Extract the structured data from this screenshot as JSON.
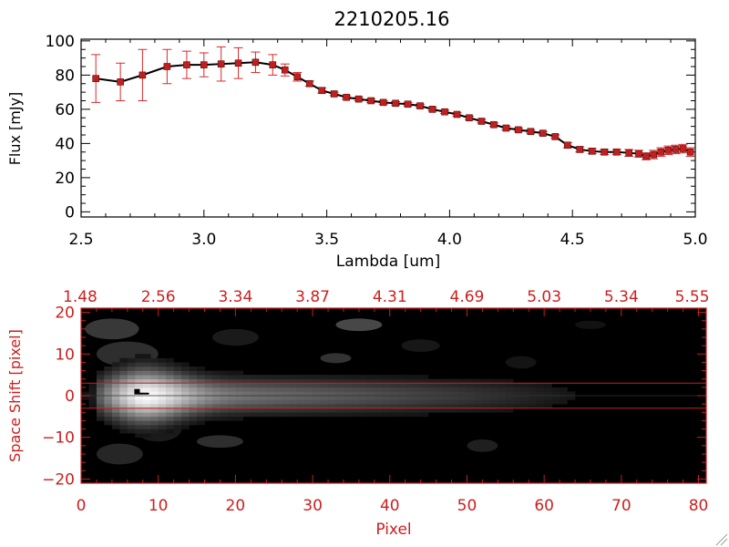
{
  "colors": {
    "axis_top": "#000000",
    "axis_bottom": "#cc1f1f",
    "marker": "#c0201f",
    "errorbar": "#d62a2a",
    "line": "#000000",
    "band": "#cc1f1f"
  },
  "chart_data": [
    {
      "type": "line",
      "title": "2210205.16",
      "xlabel": "Lambda [um]",
      "ylabel": "Flux [mJy]",
      "xlim": [
        2.5,
        5.0
      ],
      "ylim": [
        -3,
        101
      ],
      "x_ticks": [
        2.5,
        3.0,
        3.5,
        4.0,
        4.5,
        5.0
      ],
      "x_tick_labels": [
        "2.5",
        "3.0",
        "3.5",
        "4.0",
        "4.5",
        "5.0"
      ],
      "y_ticks": [
        0,
        20,
        40,
        60,
        80,
        100
      ],
      "y_tick_labels": [
        "0",
        "20",
        "40",
        "60",
        "80",
        "100"
      ],
      "x": [
        2.56,
        2.66,
        2.75,
        2.85,
        2.93,
        3.0,
        3.07,
        3.14,
        3.21,
        3.28,
        3.33,
        3.38,
        3.43,
        3.48,
        3.53,
        3.58,
        3.63,
        3.68,
        3.73,
        3.78,
        3.83,
        3.88,
        3.93,
        3.98,
        4.03,
        4.08,
        4.13,
        4.18,
        4.23,
        4.28,
        4.33,
        4.38,
        4.43,
        4.48,
        4.53,
        4.58,
        4.63,
        4.68,
        4.73,
        4.77,
        4.8,
        4.83,
        4.86,
        4.89,
        4.92,
        4.95,
        4.98
      ],
      "y": [
        78,
        76,
        80,
        85,
        86,
        86,
        86.5,
        87,
        87.5,
        86,
        83,
        79,
        75,
        71,
        69,
        67,
        66,
        65,
        64,
        63.5,
        63,
        62,
        60,
        58.5,
        57,
        55,
        53,
        51,
        49,
        48,
        47,
        46,
        44,
        39,
        36.5,
        35.5,
        35,
        35,
        34.5,
        34,
        32.5,
        33.5,
        35,
        36,
        36.5,
        37,
        35
      ],
      "yerr": [
        14,
        11,
        15,
        10,
        8,
        7,
        10,
        9,
        6,
        6,
        3.5,
        2.5,
        1.5,
        1.5,
        1,
        1,
        1,
        1,
        1,
        1,
        1,
        1,
        1,
        1,
        1,
        1,
        1,
        1,
        1,
        1,
        1,
        1,
        1,
        1.5,
        1.5,
        1.5,
        1.5,
        1.5,
        2,
        2,
        2,
        2.5,
        2.5,
        2.5,
        2.5,
        2.5,
        2.5
      ]
    },
    {
      "type": "heatmap",
      "xlabel": "Pixel",
      "ylabel": "Space Shift [pixel]",
      "xlim": [
        0,
        81
      ],
      "ylim": [
        -21,
        21
      ],
      "x_ticks": [
        0,
        10,
        20,
        30,
        40,
        50,
        60,
        70,
        80
      ],
      "x_tick_labels": [
        "0",
        "10",
        "20",
        "30",
        "40",
        "50",
        "60",
        "70",
        "80"
      ],
      "y_ticks": [
        -20,
        -10,
        0,
        10,
        20
      ],
      "y_tick_labels": [
        "−20",
        "−10",
        "0",
        "10",
        "20"
      ],
      "top_axis_positions": [
        0,
        10,
        20,
        30,
        40,
        50,
        60,
        70,
        80
      ],
      "top_axis_labels": [
        "1.48",
        "2.56",
        "3.34",
        "3.87",
        "4.31",
        "4.69",
        "5.03",
        "5.34",
        "5.55"
      ],
      "extraction_band": [
        -3,
        3
      ],
      "trace_center": 0,
      "peak_pixel": 8
    }
  ]
}
